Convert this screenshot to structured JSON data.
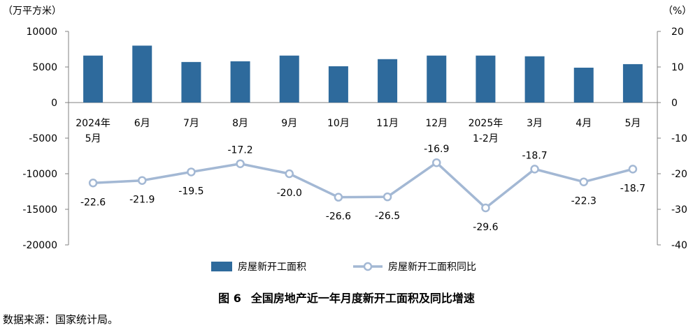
{
  "chart_data": {
    "type": "bar+line",
    "left_axis_unit": "（万平方米）",
    "right_axis_unit": "（%）",
    "left_ylim": [
      -20000,
      10000
    ],
    "left_ticks": [
      "10000",
      "5000",
      "0",
      "-5000",
      "-10000",
      "-15000",
      "-20000"
    ],
    "right_ylim": [
      -40,
      20
    ],
    "right_ticks": [
      "20",
      "10",
      "0",
      "-10",
      "-20",
      "-30",
      "-40"
    ],
    "categories": [
      [
        "2024年",
        "5月"
      ],
      [
        "6月"
      ],
      [
        "7月"
      ],
      [
        "8月"
      ],
      [
        "9月"
      ],
      [
        "10月"
      ],
      [
        "11月"
      ],
      [
        "12月"
      ],
      [
        "2025年",
        "1-2月"
      ],
      [
        "3月"
      ],
      [
        "4月"
      ],
      [
        "5月"
      ]
    ],
    "series": [
      {
        "name": "房屋新开工面积",
        "type": "bar",
        "axis": "left",
        "color": "#2e6a9c",
        "values": [
          6600,
          8000,
          5700,
          5800,
          6600,
          5100,
          6100,
          6600,
          6600,
          6500,
          4900,
          5400
        ]
      },
      {
        "name": "房屋新开工面积同比",
        "type": "line",
        "axis": "right",
        "color": "#a3b8d4",
        "values": [
          -22.6,
          -21.9,
          -19.5,
          -17.2,
          -20.0,
          -26.6,
          -26.5,
          -16.9,
          -29.6,
          -18.7,
          -22.3,
          -18.7
        ],
        "labels": [
          "-22.6",
          "-21.9",
          "-19.5",
          "-17.2",
          "-20.0",
          "-26.6",
          "-26.5",
          "-16.9",
          "-29.6",
          "-18.7",
          "-22.3",
          "-18.7"
        ]
      }
    ]
  },
  "caption": {
    "figure_no": "图 6",
    "title": "全国房地产近一年月度新开工面积及同比增速"
  },
  "source": "数据来源：国家统计局。"
}
